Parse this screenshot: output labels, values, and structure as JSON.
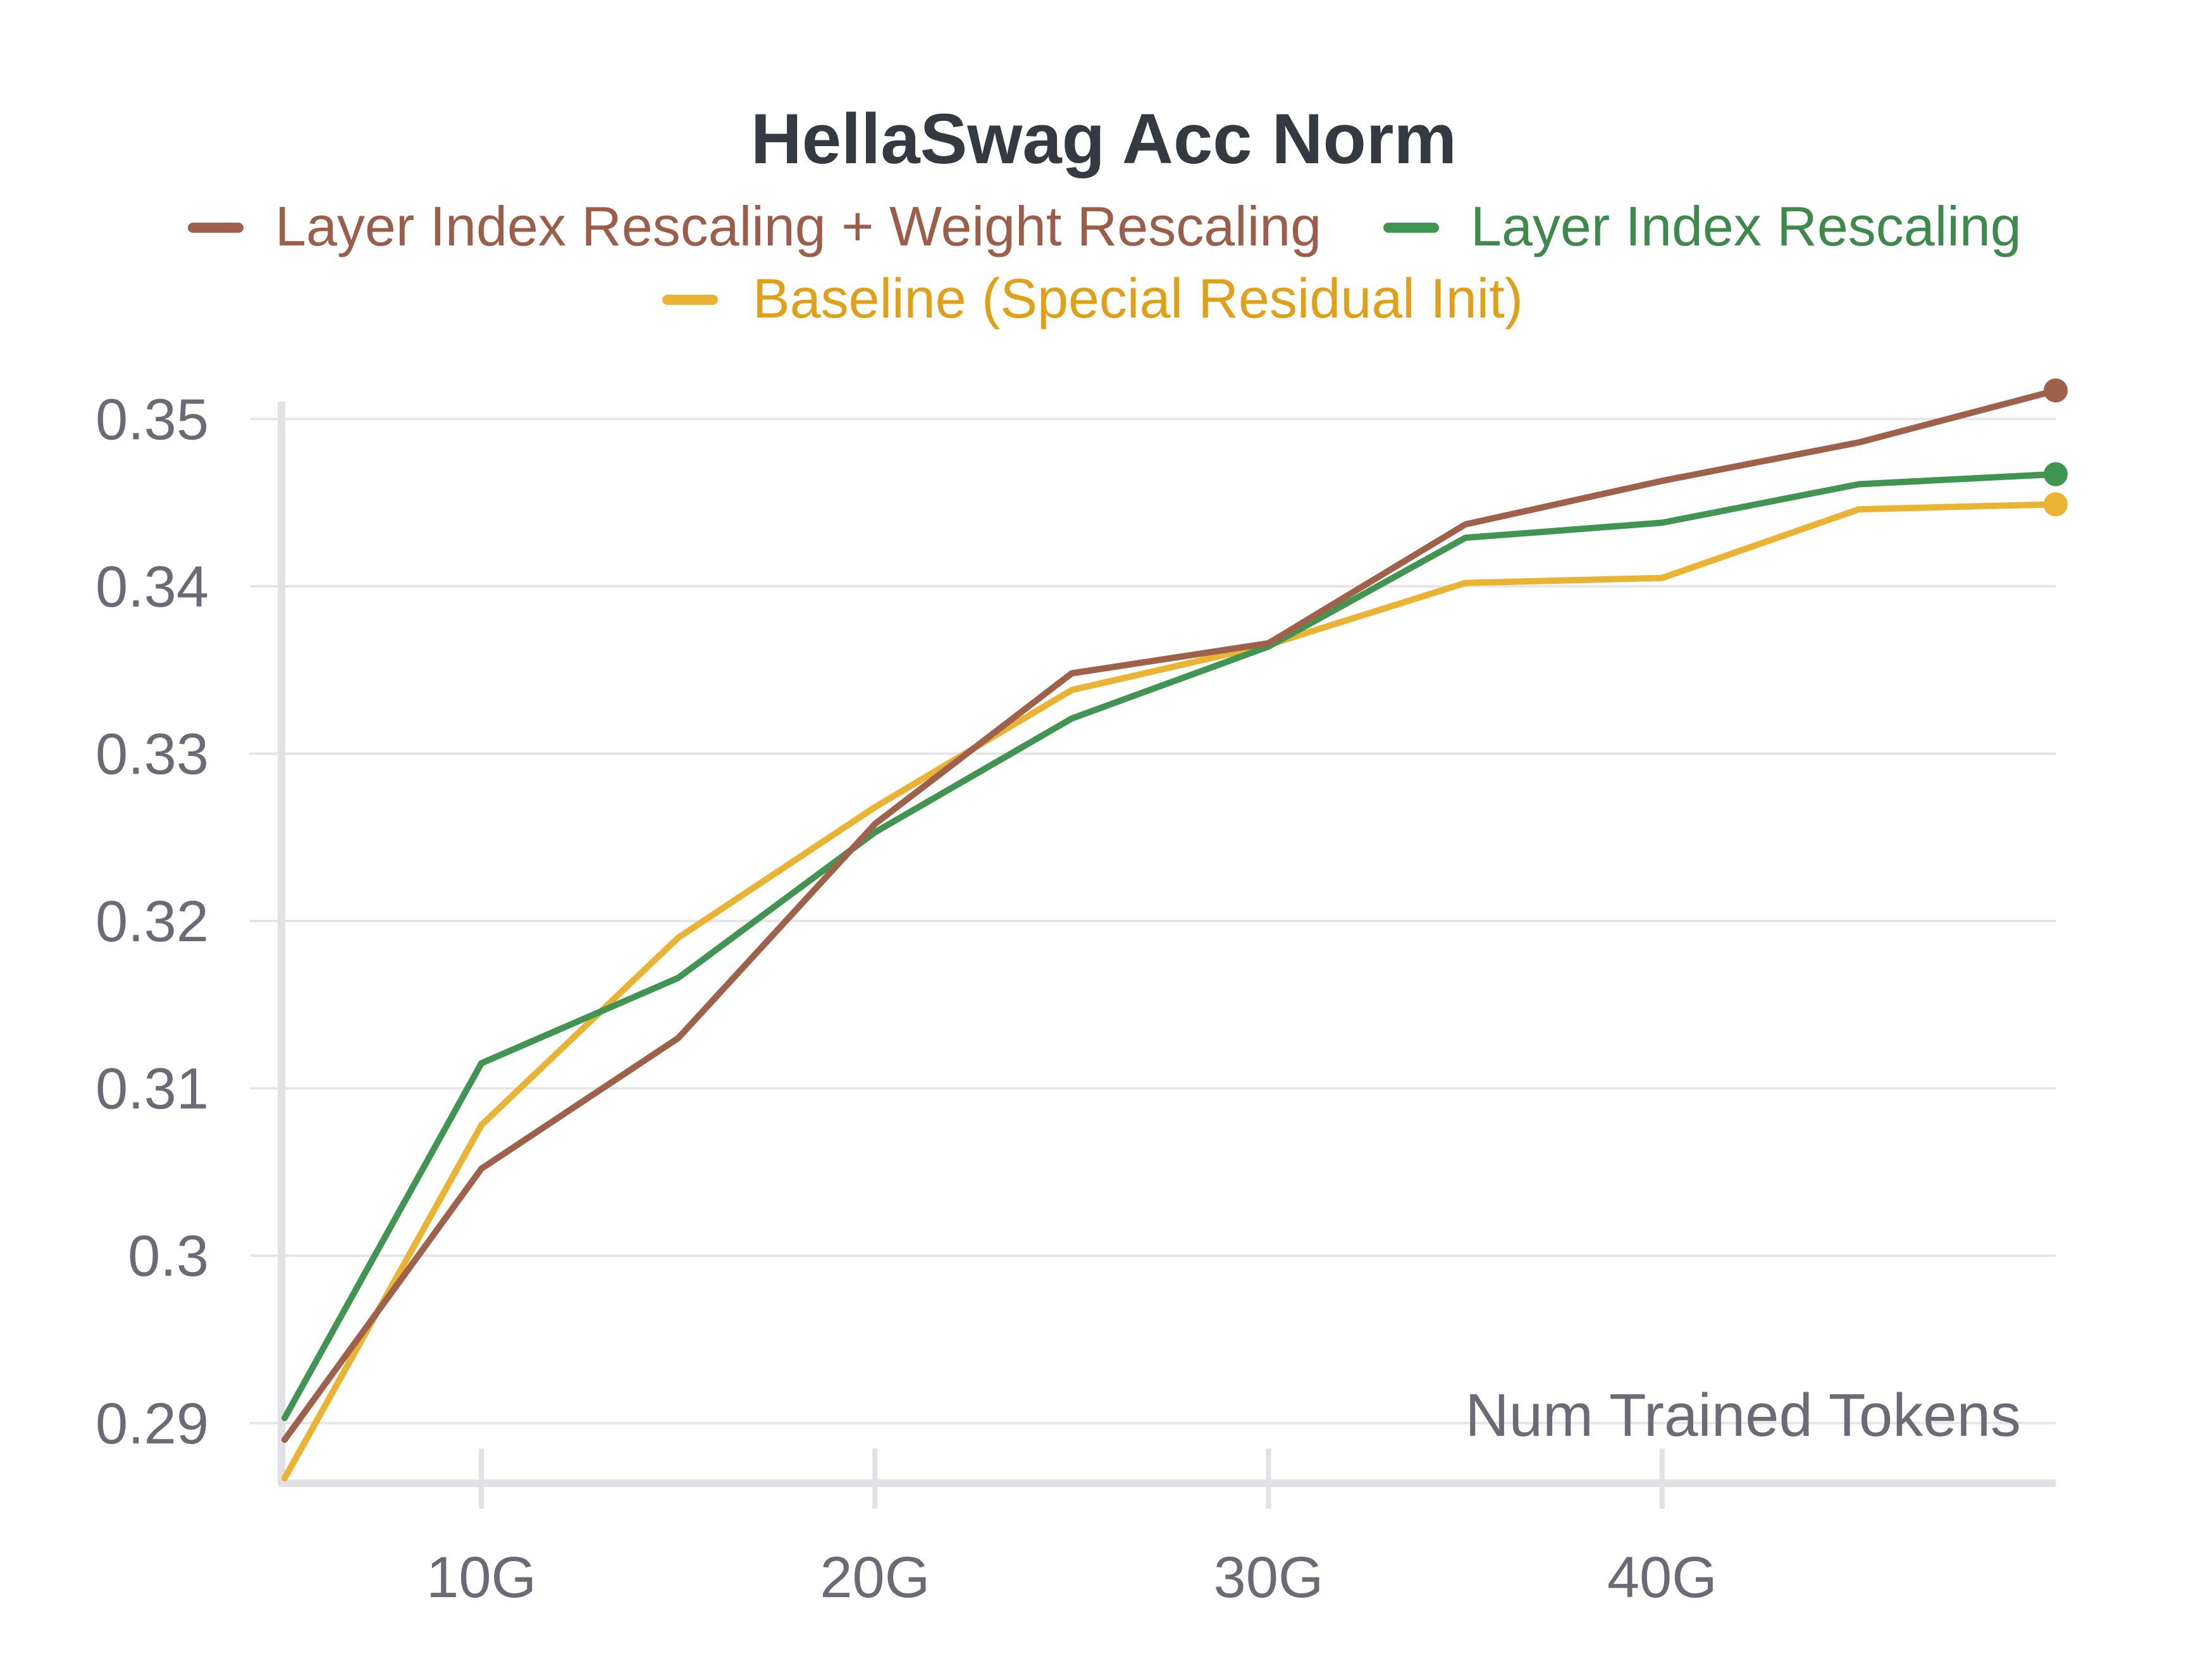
{
  "chart_data": {
    "type": "line",
    "title": "HellaSwag Acc Norm",
    "xlabel": "Num Trained Tokens",
    "ylabel": "",
    "xlim": [
      5,
      50
    ],
    "ylim": [
      0.2864,
      0.3516
    ],
    "grid": true,
    "legend_position": "top",
    "x_ticks": [
      {
        "value": 10,
        "label": "10G"
      },
      {
        "value": 20,
        "label": "20G"
      },
      {
        "value": 30,
        "label": "30G"
      },
      {
        "value": 40,
        "label": "40G"
      }
    ],
    "y_ticks": [
      {
        "value": 0.29,
        "label": "0.29"
      },
      {
        "value": 0.3,
        "label": "0.3"
      },
      {
        "value": 0.31,
        "label": "0.31"
      },
      {
        "value": 0.32,
        "label": "0.32"
      },
      {
        "value": 0.33,
        "label": "0.33"
      },
      {
        "value": 0.34,
        "label": "0.34"
      },
      {
        "value": 0.35,
        "label": "0.35"
      }
    ],
    "series": [
      {
        "name": "Layer Index Rescaling + Weight Rescaling",
        "color": "#a0614a",
        "label_color": "#9c5e48",
        "end_marker": true,
        "x": [
          5,
          10,
          15,
          20,
          25,
          30,
          35,
          40,
          45,
          50
        ],
        "y": [
          0.289,
          0.3052,
          0.313,
          0.3258,
          0.3348,
          0.3366,
          0.3437,
          0.3463,
          0.3486,
          0.3517
        ]
      },
      {
        "name": "Layer Index Rescaling",
        "color": "#419552",
        "label_color": "#3d8a4c",
        "end_marker": true,
        "x": [
          5,
          10,
          15,
          20,
          25,
          30,
          35,
          40,
          45,
          50
        ],
        "y": [
          0.2903,
          0.3115,
          0.3166,
          0.3253,
          0.3321,
          0.3364,
          0.3429,
          0.3438,
          0.3461,
          0.3467
        ]
      },
      {
        "name": "Baseline (Special Residual Init)",
        "color": "#eab332",
        "label_color": "#e0a017",
        "end_marker": true,
        "x": [
          5,
          10,
          15,
          20,
          25,
          30,
          35,
          40,
          45,
          50
        ],
        "y": [
          0.2867,
          0.3078,
          0.319,
          0.3268,
          0.3338,
          0.3365,
          0.3402,
          0.3405,
          0.3446,
          0.3449
        ]
      }
    ]
  }
}
